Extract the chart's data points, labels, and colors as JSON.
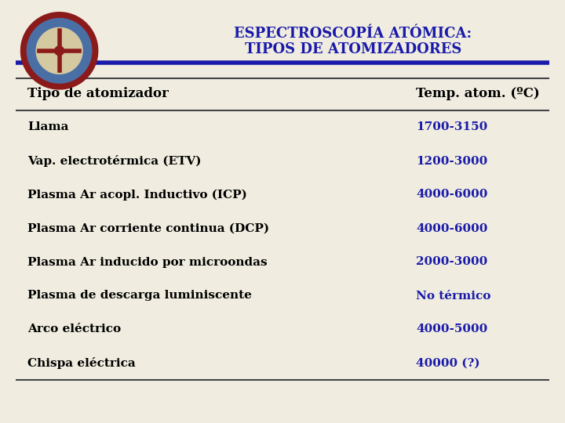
{
  "title_line1": "ESPECTROSCOPÍA ATÓMICA:",
  "title_line2": "TIPOS DE ATOMIZADORES",
  "title_color": "#1a1aaa",
  "background_color": "#f0ede0",
  "table_header_left": "Tipo de atomizador",
  "table_header_right": "Temp. atom. (ºC)",
  "header_text_color": "#000000",
  "rows": [
    [
      "Llama",
      "1700-3150"
    ],
    [
      "Vap. electrotérmica (ETV)",
      "1200-3000"
    ],
    [
      "Plasma Ar acopl. Inductivo (ICP)",
      "4000-6000"
    ],
    [
      "Plasma Ar corriente continua (DCP)",
      "4000-6000"
    ],
    [
      "Plasma Ar inducido por microondas",
      "2000-3000"
    ],
    [
      "Plasma de descarga luminiscente",
      "No térmico"
    ],
    [
      "Arco eléctrico",
      "4000-5000"
    ],
    [
      "Chispa eléctrica",
      "40000 (?)"
    ]
  ],
  "row_left_color": "#000000",
  "row_right_color": "#1a1aaa",
  "divider_color": "#1a1aaa",
  "thin_line_color": "#444444",
  "logo_outer_color": "#8B1A1A",
  "logo_ring_color": "#4a6fa5",
  "logo_inner_color": "#d4c9a0"
}
